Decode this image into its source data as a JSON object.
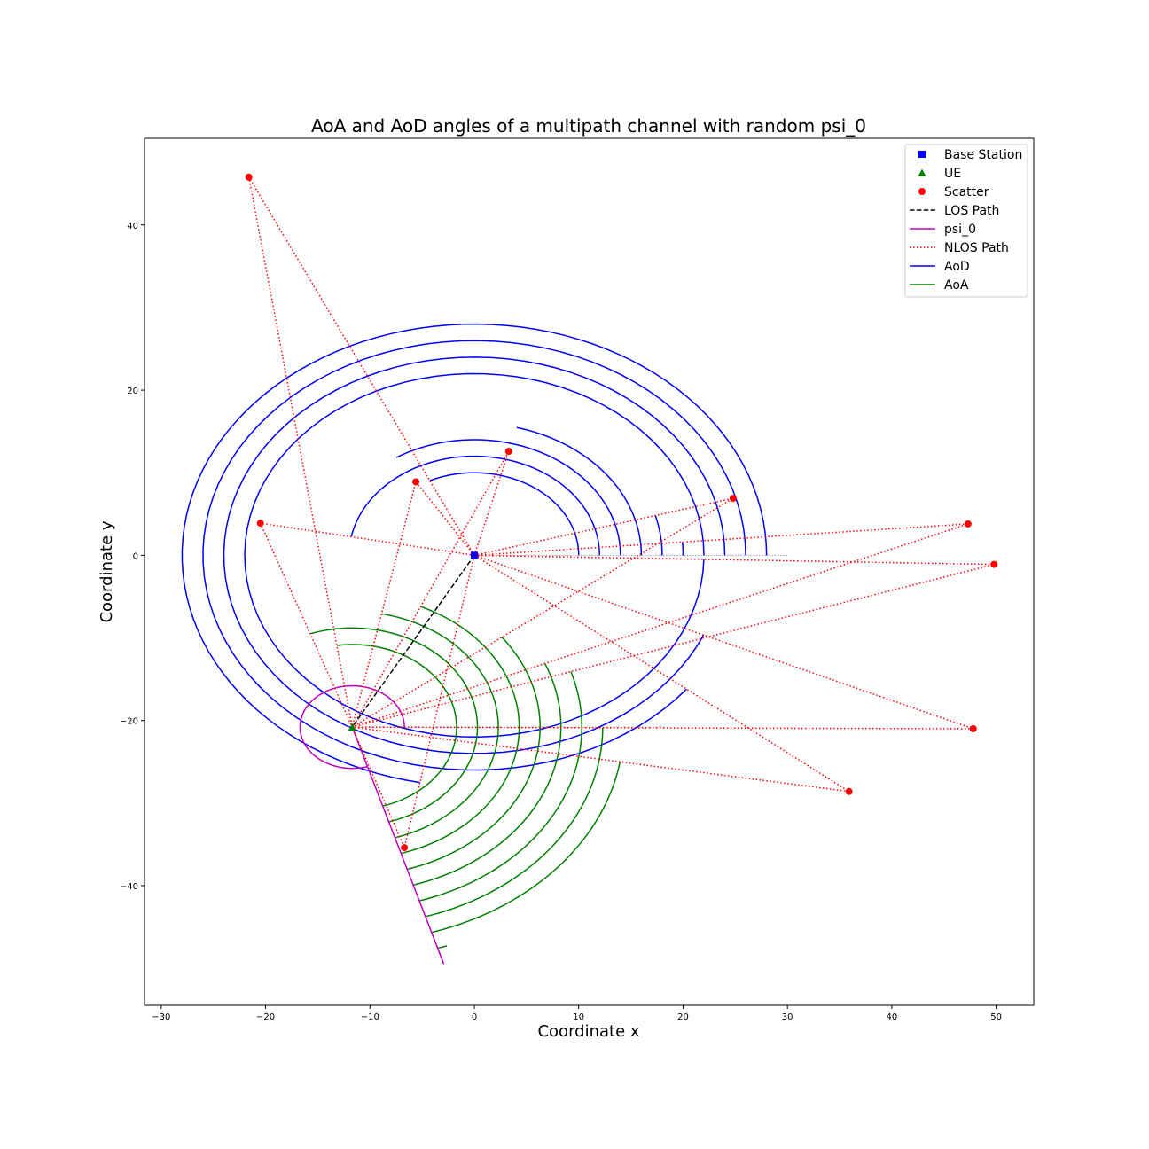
{
  "chart_data": {
    "type": "scatter",
    "title": "AoA and AoD angles of a multipath channel with random psi_0",
    "xlabel": "Coordinate x",
    "ylabel": "Coordinate y",
    "xlim": [
      -31.6,
      53.6
    ],
    "ylim": [
      -54.5,
      50.5
    ],
    "xticks": [
      -30,
      -20,
      -10,
      0,
      10,
      20,
      30,
      40,
      50
    ],
    "yticks": [
      -40,
      -20,
      0,
      20,
      40
    ],
    "grid": false,
    "legend_position": "top-right",
    "colors": {
      "base_station": "#0000ff",
      "ue": "#008000",
      "scatter": "#ff0000",
      "los": "#000000",
      "psi0": "#bf00bf",
      "nlos": "#ff0000",
      "aod": "#0000ff",
      "aoa": "#008000"
    },
    "base_station": {
      "x": 0,
      "y": 0
    },
    "ue": {
      "x": -11.7,
      "y": -20.8
    },
    "psi_0_deg": 287,
    "psi_0_radius": 5,
    "scatterers": [
      {
        "x": -21.6,
        "y": 45.8
      },
      {
        "x": -20.5,
        "y": 3.9
      },
      {
        "x": -5.6,
        "y": 8.9
      },
      {
        "x": 3.3,
        "y": 12.6
      },
      {
        "x": 24.8,
        "y": 6.9
      },
      {
        "x": 47.3,
        "y": 3.8
      },
      {
        "x": 49.8,
        "y": -1.1
      },
      {
        "x": 47.8,
        "y": -21.0
      },
      {
        "x": 35.9,
        "y": -28.6
      },
      {
        "x": -6.7,
        "y": -35.4
      }
    ],
    "aod_radii": [
      10,
      12,
      14,
      16,
      18,
      20,
      22,
      24,
      26,
      28
    ],
    "aoa_radii": [
      10,
      12,
      14,
      16,
      18,
      20,
      22,
      24,
      26,
      28
    ],
    "reference_line_x_end": 30,
    "series": [
      {
        "name": "Base Station",
        "marker": "square"
      },
      {
        "name": "UE",
        "marker": "triangle"
      },
      {
        "name": "Scatter",
        "marker": "circle"
      },
      {
        "name": "LOS Path",
        "line": "dashed"
      },
      {
        "name": "psi_0",
        "line": "solid"
      },
      {
        "name": "NLOS Path",
        "line": "dotted"
      },
      {
        "name": "AoD",
        "line": "solid"
      },
      {
        "name": "AoA",
        "line": "solid"
      }
    ]
  }
}
